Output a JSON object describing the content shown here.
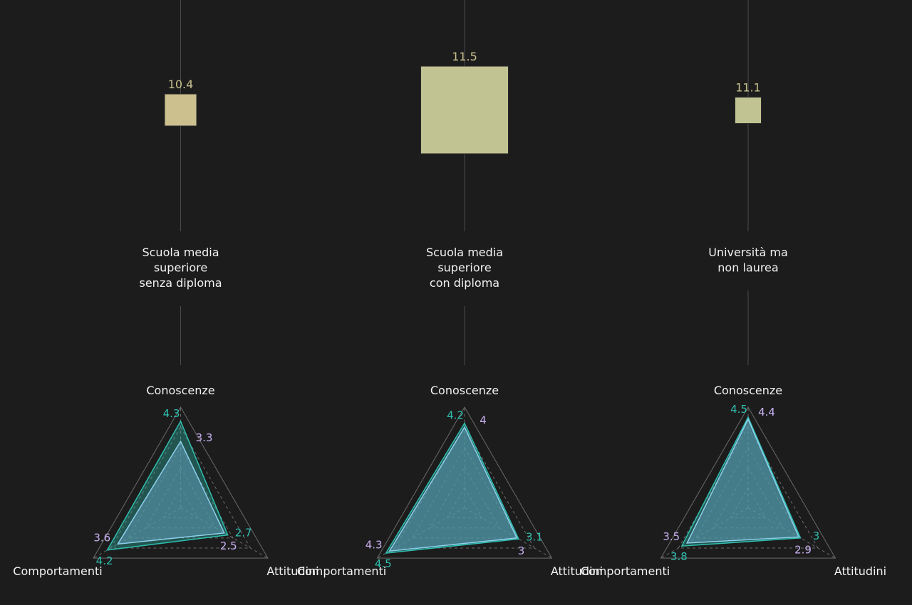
{
  "colors": {
    "background": "#1c1c1c",
    "square_fill_first": "#cbc08e",
    "square_fill": "#c2c392",
    "value_label": "#c7c18e",
    "category_label": "#f2f2f2",
    "axis_label": "#f2f2f2",
    "series_teal": "#2fbfb0",
    "series_lavender": "#c9b0f2",
    "polygon_outline": "#8fd0ee",
    "polygon_fill": "#5b96b0",
    "grid_line": "#6a6a6a",
    "stem_line": "#4a4a4a"
  },
  "chart_data": {
    "type": "radar",
    "axes": [
      "Conoscenze",
      "Attitudini",
      "Comportamenti"
    ],
    "scale_max": 5,
    "grid_levels": [
      1,
      2,
      3,
      4,
      5
    ],
    "series_colors": [
      "teal",
      "lavender"
    ],
    "groups": [
      {
        "label_lines": [
          "Scuola media",
          "superiore",
          "senza diploma"
        ],
        "size_value": "10.4",
        "teal": {
          "Conoscenze": 4.3,
          "Attitudini": 2.7,
          "Comportamenti": 4.2
        },
        "lavender": {
          "Conoscenze": 3.3,
          "Attitudini": 2.5,
          "Comportamenti": 3.6
        }
      },
      {
        "label_lines": [
          "Scuola media",
          "superiore",
          "con diploma"
        ],
        "size_value": "11.5",
        "teal": {
          "Conoscenze": 4.2,
          "Attitudini": 3.1,
          "Comportamenti": 4.5
        },
        "lavender": {
          "Conoscenze": 4,
          "Attitudini": 3,
          "Comportamenti": 4.3
        }
      },
      {
        "label_lines": [
          "Università ma",
          "non laurea"
        ],
        "size_value": "11.1",
        "teal": {
          "Conoscenze": 4.5,
          "Attitudini": 3,
          "Comportamenti": 3.8
        },
        "lavender": {
          "Conoscenze": 4.4,
          "Attitudini": 2.9,
          "Comportamenti": 3.5
        }
      }
    ]
  }
}
